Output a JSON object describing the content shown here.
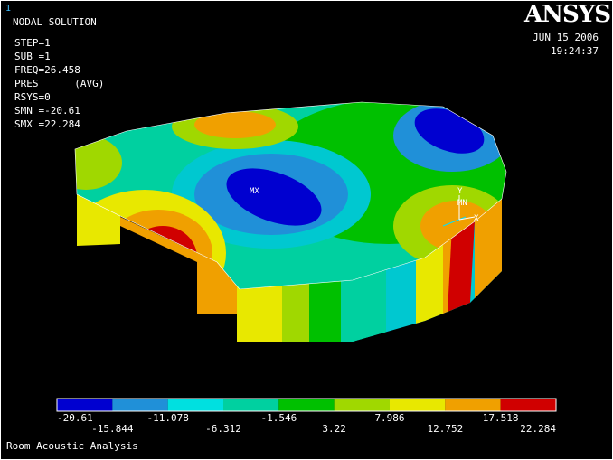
{
  "plot_id": "1",
  "title": "NODAL SOLUTION",
  "parameters": [
    "STEP=1",
    "SUB =1",
    "FREQ=26.458",
    "PRES      (AVG)",
    "RSYS=0",
    "SMN =-20.61",
    "SMX =22.284"
  ],
  "logo": "ANSYS",
  "date": "JUN 15 2006",
  "time": "19:24:37",
  "markers": {
    "max": "MX",
    "min": "MN"
  },
  "triad": {
    "x": "X",
    "y": "Y"
  },
  "legend": {
    "labels": [
      "-20.61",
      "-15.844",
      "-11.078",
      "-6.312",
      "-1.546",
      "3.22",
      "7.986",
      "12.752",
      "17.518",
      "22.284"
    ],
    "colors": [
      "#0000d0",
      "#2090d8",
      "#00e0e0",
      "#00d0a0",
      "#00c000",
      "#a0d800",
      "#e8e800",
      "#f0a000",
      "#d00000"
    ]
  },
  "footer": "Room Acoustic Analysis"
}
